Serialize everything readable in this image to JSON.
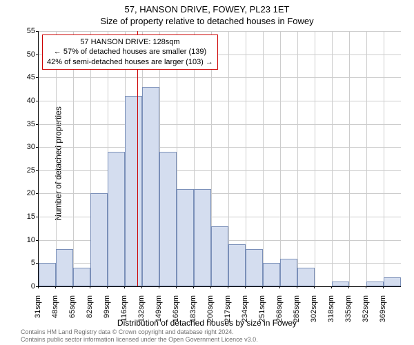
{
  "title": "57, HANSON DRIVE, FOWEY, PL23 1ET",
  "subtitle": "Size of property relative to detached houses in Fowey",
  "chart": {
    "type": "histogram",
    "categories": [
      "31sqm",
      "48sqm",
      "65sqm",
      "82sqm",
      "99sqm",
      "116sqm",
      "132sqm",
      "149sqm",
      "166sqm",
      "183sqm",
      "200sqm",
      "217sqm",
      "234sqm",
      "251sqm",
      "268sqm",
      "285sqm",
      "302sqm",
      "318sqm",
      "335sqm",
      "352sqm",
      "369sqm"
    ],
    "values": [
      5,
      8,
      4,
      20,
      29,
      41,
      43,
      29,
      21,
      21,
      13,
      9,
      8,
      5,
      6,
      4,
      0,
      1,
      0,
      1,
      2
    ],
    "bar_fill_color": "#d4ddef",
    "bar_border_color": "#7a8fb8",
    "background_color": "#ffffff",
    "grid_color": "#cccccc",
    "ylim": [
      0,
      55
    ],
    "ytick_step": 5,
    "ylabel": "Number of detached properties",
    "xlabel": "Distribution of detached houses by size in Fowey",
    "label_fontsize": 12,
    "tick_fontsize": 11,
    "reference_line": {
      "x_index": 5.7,
      "color": "#cc0000"
    },
    "callout": {
      "line1": "57 HANSON DRIVE: 128sqm",
      "line2": "← 57% of detached houses are smaller (139)",
      "line3": "42% of semi-detached houses are larger (103) →",
      "border_color": "#cc0000"
    }
  },
  "footer": {
    "line1": "Contains HM Land Registry data © Crown copyright and database right 2024.",
    "line2": "Contains public sector information licensed under the Open Government Licence v3.0."
  }
}
